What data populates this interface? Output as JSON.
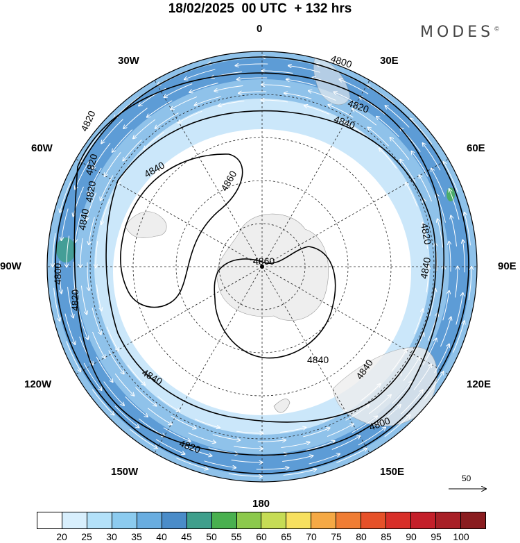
{
  "title": "18/02/2025  00 UTC  + 132 hrs",
  "brand": {
    "name": "MODES",
    "mark": "©"
  },
  "longitudes": [
    "0",
    "30E",
    "60E",
    "90E",
    "120E",
    "150E",
    "180",
    "150W",
    "120W",
    "90W",
    "60W",
    "30W"
  ],
  "contours": [
    {
      "label": "4800",
      "type": "geopotential"
    },
    {
      "label": "4820",
      "type": "geopotential"
    },
    {
      "label": "4840",
      "type": "geopotential"
    },
    {
      "label": "4860",
      "type": "geopotential"
    }
  ],
  "contour_labels": [
    "4800",
    "4820",
    "4840",
    "4860",
    "4860",
    "4840",
    "4840",
    "4840",
    "4840",
    "4840",
    "4820",
    "4820",
    "4820",
    "4820",
    "4840",
    "4800",
    "4800",
    "4820",
    "4820"
  ],
  "vector_reference": {
    "value": "50"
  },
  "colorbar": {
    "labels": [
      "20",
      "25",
      "30",
      "35",
      "40",
      "45",
      "50",
      "55",
      "60",
      "65",
      "70",
      "75",
      "80",
      "85",
      "90",
      "95",
      "100"
    ],
    "colors": [
      "#ffffff",
      "#d8effd",
      "#b3e1f9",
      "#8ccbef",
      "#69ade0",
      "#4a8cc9",
      "#3f9f8c",
      "#49b04f",
      "#8cc94c",
      "#c6dc55",
      "#f7e05f",
      "#f5a945",
      "#f07d34",
      "#e65129",
      "#d82f29",
      "#c41f2a",
      "#a81f26",
      "#8a1c1f"
    ]
  },
  "colors": {
    "land": "#eeeeee",
    "ring_dark": "#5d9cd6",
    "ring_mid": "#8fc2ea",
    "ring_light": "#cbe7fa"
  }
}
